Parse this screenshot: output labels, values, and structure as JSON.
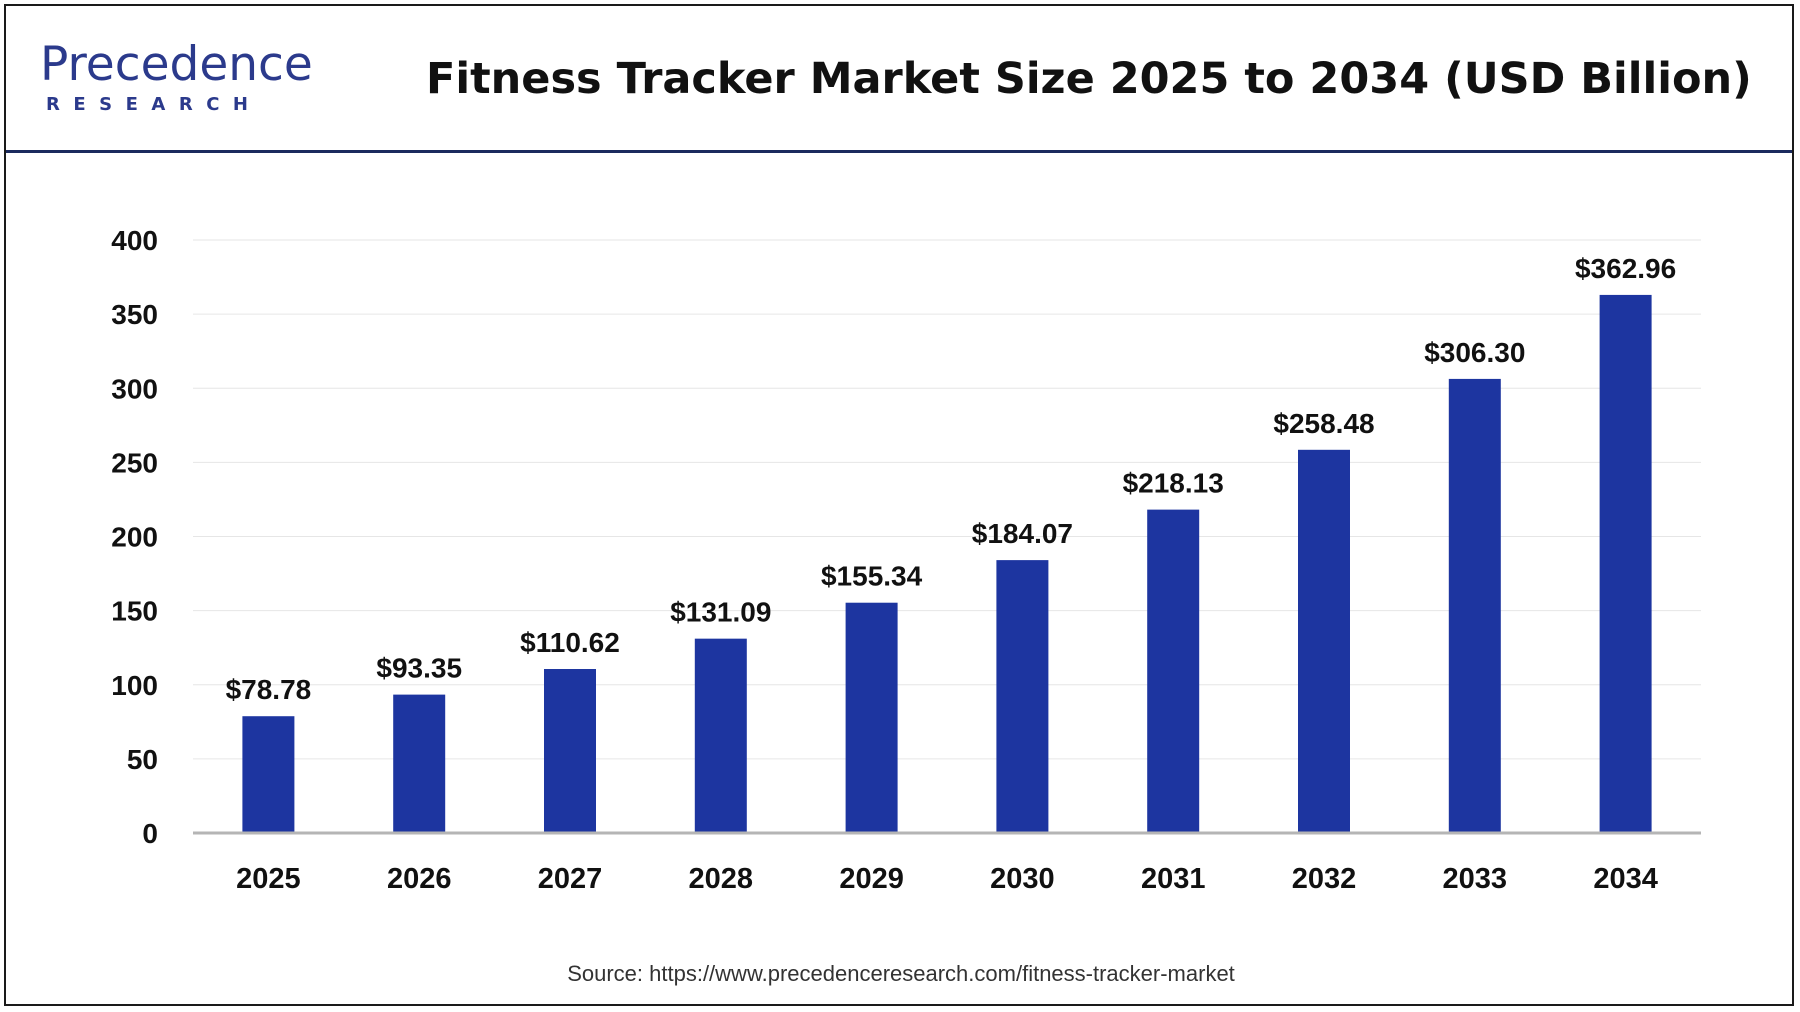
{
  "header": {
    "logo_word": "Precedence",
    "logo_sub": "RESEARCH",
    "title": "Fitness Tracker Market Size 2025 to 2034 (USD Billion)"
  },
  "source": "Source: https://www.precedenceresearch.com/fitness-tracker-market",
  "colors": {
    "bar": "#1d35a0",
    "brand": "#2b3a8c",
    "header_rule": "#1b2a5e",
    "grid": "#e6e6e6"
  },
  "chart_data": {
    "type": "bar",
    "title": "Fitness Tracker Market Size 2025 to 2034 (USD Billion)",
    "xlabel": "",
    "ylabel": "",
    "categories": [
      "2025",
      "2026",
      "2027",
      "2028",
      "2029",
      "2030",
      "2031",
      "2032",
      "2033",
      "2034"
    ],
    "values": [
      78.78,
      93.35,
      110.62,
      131.09,
      155.34,
      184.07,
      218.13,
      258.48,
      306.3,
      362.96
    ],
    "data_labels": [
      "$78.78",
      "$93.35",
      "$110.62",
      "$131.09",
      "$155.34",
      "$184.07",
      "$218.13",
      "$258.48",
      "$306.30",
      "$362.96"
    ],
    "ylim": [
      0,
      400
    ],
    "yticks": [
      0,
      50,
      100,
      150,
      200,
      250,
      300,
      350,
      400
    ],
    "grid": true,
    "legend": "none"
  }
}
